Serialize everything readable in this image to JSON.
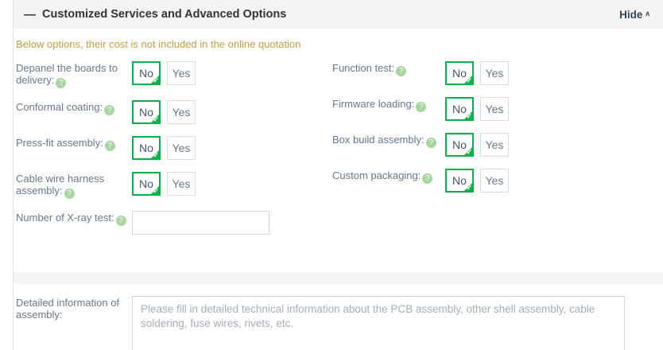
{
  "header": {
    "collapse_icon": "—",
    "title": "Customized Services and Advanced Options",
    "hide_label": "Hide",
    "hide_caret": "∧"
  },
  "notice": "Below options, their cost is not included in the online quotation",
  "icons": {
    "help_glyph": "?",
    "check_glyph": "✓"
  },
  "toggle": {
    "no_label": "No",
    "yes_label": "Yes"
  },
  "form": {
    "left_rows": [
      {
        "label": "Depanel the boards to delivery:",
        "selected": "No"
      },
      {
        "label": "Conformal coating:",
        "selected": "No"
      },
      {
        "label": "Press-fit assembly:",
        "selected": "No"
      },
      {
        "label": "Cable wire harness assembly:",
        "selected": "No"
      }
    ],
    "right_rows": [
      {
        "label": "Function test:",
        "selected": "No"
      },
      {
        "label": "Firmware loading:",
        "selected": "No"
      },
      {
        "label": "Box build assembly:",
        "selected": "No"
      },
      {
        "label": "Custom packaging:",
        "selected": "No"
      }
    ],
    "xray_row": {
      "label": "Number of X-ray test:",
      "value": ""
    },
    "detail_row": {
      "label": "Detailed information of assembly:",
      "value": "",
      "placeholder": "Please fill in detailed technical information about the PCB assembly, other shell assembly, cable soldering, fuse wires, rivets, etc."
    }
  },
  "colors": {
    "accent_green": "#0db14b",
    "notice_text": "#bf9e44",
    "header_bg": "#f4f4f4",
    "link_text": "#32465a",
    "label_text": "#66788a"
  }
}
